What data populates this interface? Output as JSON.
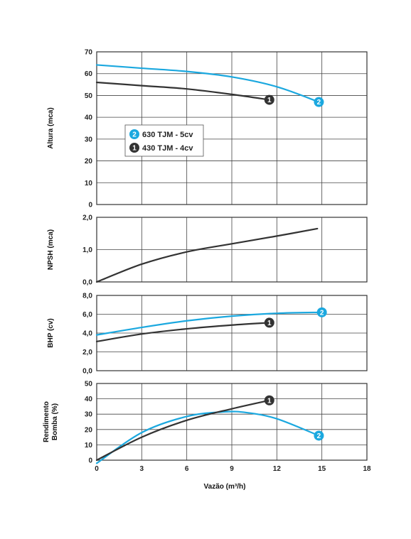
{
  "chart_data": {
    "type": "line",
    "x_axis": {
      "label": "Vazão (m³/h)",
      "range": [
        0,
        18
      ],
      "ticks": [
        "0",
        "3",
        "6",
        "9",
        "12",
        "15",
        "18"
      ],
      "tick_values": [
        0,
        3,
        6,
        9,
        12,
        15,
        18
      ]
    },
    "legend": {
      "placement": "inside-upper-left of Altura panel",
      "entries": [
        {
          "marker": "2",
          "label": "630 TJM - 5cv",
          "color": "#1ba8df"
        },
        {
          "marker": "1",
          "label": "430 TJM - 4cv",
          "color": "#333333"
        }
      ]
    },
    "grid": true,
    "panels": [
      {
        "id": "altura",
        "ylabel": "Altura (mca)",
        "ylabel_lines": [
          "Altura (mca)"
        ],
        "ylim": [
          0,
          70
        ],
        "ticks": [
          "0",
          "10",
          "20",
          "30",
          "40",
          "50",
          "60",
          "70"
        ],
        "tick_values": [
          0,
          10,
          20,
          30,
          40,
          50,
          60,
          70
        ],
        "series": [
          {
            "name": "2",
            "color": "#1ba8df",
            "x": [
              0,
              3,
              6,
              9,
              12,
              14.8
            ],
            "y": [
              64,
              62.5,
              61,
              58.5,
              54,
              47
            ],
            "end_marker": "2"
          },
          {
            "name": "1",
            "color": "#333333",
            "x": [
              0,
              3,
              6,
              9,
              11.5
            ],
            "y": [
              56,
              54.5,
              53,
              50.5,
              48
            ],
            "end_marker": "1"
          }
        ]
      },
      {
        "id": "npsh",
        "ylabel": "NPSH (mca)",
        "ylabel_lines": [
          "NPSH (mca)"
        ],
        "ylim": [
          0,
          2
        ],
        "ticks": [
          "0,0",
          "1,0",
          "2,0"
        ],
        "tick_values": [
          0,
          1,
          2
        ],
        "series": [
          {
            "name": "",
            "color": "#333333",
            "x": [
              0,
              3,
              6,
              9,
              12,
              14.7
            ],
            "y": [
              0,
              0.55,
              0.93,
              1.18,
              1.42,
              1.65
            ],
            "end_marker": ""
          }
        ]
      },
      {
        "id": "bhp",
        "ylabel": "BHP (cv)",
        "ylabel_lines": [
          "BHP (cv)"
        ],
        "ylim": [
          0,
          8
        ],
        "ticks": [
          "0,0",
          "2,0",
          "4,0",
          "6,0",
          "8,0"
        ],
        "tick_values": [
          0,
          2,
          4,
          6,
          8
        ],
        "series": [
          {
            "name": "2",
            "color": "#1ba8df",
            "x": [
              0,
              3,
              6,
              9,
              12,
              15
            ],
            "y": [
              3.8,
              4.6,
              5.3,
              5.8,
              6.1,
              6.2
            ],
            "end_marker": "2"
          },
          {
            "name": "1",
            "color": "#333333",
            "x": [
              0,
              3,
              6,
              9,
              11.5
            ],
            "y": [
              3.1,
              3.9,
              4.45,
              4.85,
              5.1
            ],
            "end_marker": "1"
          }
        ]
      },
      {
        "id": "rendimento",
        "ylabel": "Rendimento Bomba (%)",
        "ylabel_lines": [
          "Rendimento",
          "Bomba (%)"
        ],
        "ylim": [
          0,
          50
        ],
        "ticks": [
          "0",
          "10",
          "20",
          "30",
          "40",
          "50"
        ],
        "tick_values": [
          0,
          10,
          20,
          30,
          40,
          50
        ],
        "series": [
          {
            "name": "2",
            "color": "#1ba8df",
            "x": [
              0,
              3,
              6,
              8.5,
              10,
              12,
              14.8
            ],
            "y": [
              -2,
              18,
              28.5,
              31.5,
              31,
              27,
              16
            ],
            "end_marker": "2"
          },
          {
            "name": "1",
            "color": "#333333",
            "x": [
              0,
              3,
              6,
              9,
              11.5
            ],
            "y": [
              0,
              15,
              26,
              33.5,
              39
            ],
            "end_marker": "1"
          }
        ]
      }
    ]
  }
}
